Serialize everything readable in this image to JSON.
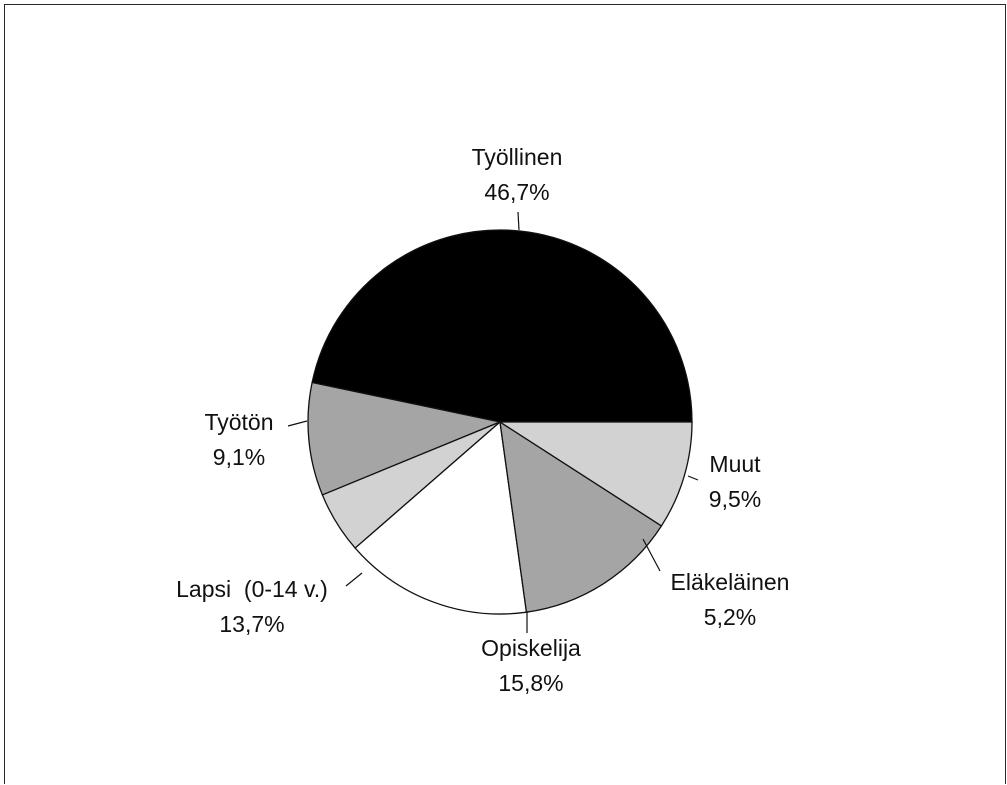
{
  "chart_data": {
    "type": "pie",
    "slices": [
      {
        "label": "Työllinen",
        "value": 46.7,
        "display": "46,7%",
        "color": "#000000"
      },
      {
        "label": "Muut",
        "value": 9.5,
        "display": "9,5%",
        "color": "#a5a5a5"
      },
      {
        "label": "Eläkeläinen",
        "value": 5.2,
        "display": "5,2%",
        "color": "#d2d2d2"
      },
      {
        "label": "Opiskelija",
        "value": 15.8,
        "display": "15,8%",
        "color": "#ffffff"
      },
      {
        "label": "Lapsi  (0-14 v.)",
        "value": 13.7,
        "display": "13,7%",
        "color": "#a5a5a5"
      },
      {
        "label": "Työtön",
        "value": 9.1,
        "display": "9,1%",
        "color": "#d2d2d2"
      }
    ]
  }
}
